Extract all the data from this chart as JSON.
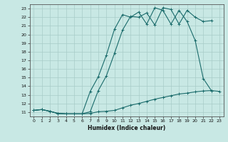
{
  "xlabel": "Humidex (Indice chaleur)",
  "bg_color": "#c8e8e4",
  "grid_color": "#a8ccc8",
  "line_color": "#1a6b6b",
  "xlim": [
    -0.5,
    23.5
  ],
  "ylim": [
    10.5,
    23.5
  ],
  "xticks": [
    0,
    1,
    2,
    3,
    4,
    5,
    6,
    7,
    8,
    9,
    10,
    11,
    12,
    13,
    14,
    15,
    16,
    17,
    18,
    19,
    20,
    21,
    22,
    23
  ],
  "yticks": [
    11,
    12,
    13,
    14,
    15,
    16,
    17,
    18,
    19,
    20,
    21,
    22,
    23
  ],
  "line1_x": [
    0,
    1,
    2,
    3,
    4,
    5,
    6,
    7,
    8,
    9,
    10,
    11,
    12,
    13,
    14,
    15,
    16,
    17,
    18,
    19,
    20,
    21,
    22,
    23
  ],
  "line1_y": [
    11.2,
    11.3,
    11.1,
    10.85,
    10.8,
    10.8,
    10.8,
    10.85,
    11.05,
    11.1,
    11.2,
    11.5,
    11.8,
    12.0,
    12.25,
    12.5,
    12.7,
    12.9,
    13.1,
    13.2,
    13.35,
    13.45,
    13.5,
    13.4
  ],
  "line2_x": [
    0,
    1,
    2,
    3,
    4,
    5,
    6,
    7,
    8,
    9,
    10,
    11,
    12,
    13,
    14,
    15,
    16,
    17,
    18,
    19,
    20,
    21,
    22
  ],
  "line2_y": [
    11.2,
    11.3,
    11.1,
    10.85,
    10.8,
    10.8,
    10.8,
    11.05,
    13.5,
    15.2,
    17.8,
    20.5,
    22.1,
    22.0,
    22.5,
    21.1,
    23.1,
    22.9,
    21.2,
    22.8,
    22.0,
    21.5,
    21.6
  ],
  "line3_x": [
    0,
    1,
    2,
    3,
    4,
    5,
    6,
    7,
    8,
    9,
    10,
    11,
    12,
    13,
    14,
    15,
    16,
    17,
    18,
    19,
    20,
    21,
    22
  ],
  "line3_y": [
    11.2,
    11.3,
    11.1,
    10.85,
    10.8,
    10.8,
    10.8,
    13.4,
    15.1,
    17.6,
    20.6,
    22.3,
    22.0,
    22.6,
    21.2,
    23.1,
    22.8,
    21.2,
    22.8,
    21.5,
    19.3,
    14.9,
    13.5
  ]
}
